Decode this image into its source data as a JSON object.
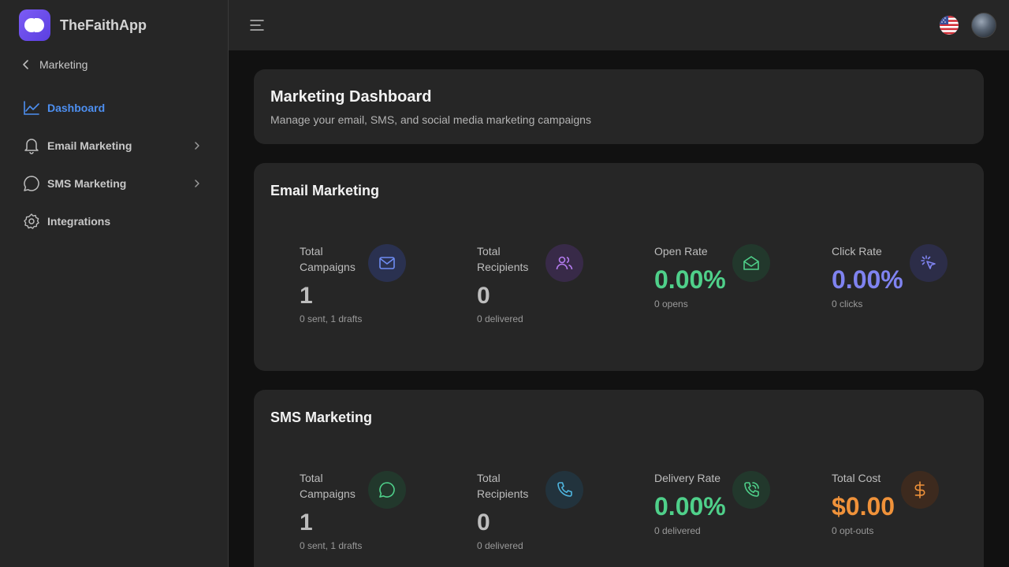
{
  "brand": {
    "name": "TheFaithApp"
  },
  "sidebar": {
    "back_label": "Marketing",
    "items": [
      {
        "label": "Dashboard",
        "active": true,
        "icon": "chart-line-icon"
      },
      {
        "label": "Email Marketing",
        "icon": "bell-icon",
        "has_children": true
      },
      {
        "label": "SMS Marketing",
        "icon": "chat-bubble-icon",
        "has_children": true
      },
      {
        "label": "Integrations",
        "icon": "gear-icon"
      }
    ]
  },
  "topbar": {
    "menu_icon": "hamburger-icon",
    "flag_icon": "us-flag-icon",
    "avatar": "user-avatar"
  },
  "header": {
    "title": "Marketing Dashboard",
    "subtitle": "Manage your email, SMS, and social media marketing campaigns"
  },
  "email": {
    "title": "Email Marketing",
    "stats": [
      {
        "label": "Total Campaigns",
        "value": "1",
        "sub": "0 sent, 1 drafts",
        "icon": "mail-icon",
        "color": "#6e8cf2"
      },
      {
        "label": "Total Recipients",
        "value": "0",
        "sub": "0 delivered",
        "icon": "users-icon",
        "color": "#b57cf0"
      },
      {
        "label": "Open Rate",
        "value": "0.00%",
        "sub": "0 opens",
        "icon": "mail-open-icon",
        "color": "#4fd08a"
      },
      {
        "label": "Click Rate",
        "value": "0.00%",
        "sub": "0 clicks",
        "icon": "cursor-click-icon",
        "color": "#7f83f0"
      }
    ]
  },
  "sms": {
    "title": "SMS Marketing",
    "stats": [
      {
        "label": "Total Campaigns",
        "value": "1",
        "sub": "0 sent, 1 drafts",
        "icon": "chat-icon",
        "color": "#4fd08a"
      },
      {
        "label": "Total Recipients",
        "value": "0",
        "sub": "0 delivered",
        "icon": "phone-icon",
        "color": "#4fb6e0"
      },
      {
        "label": "Delivery Rate",
        "value": "0.00%",
        "sub": "0 delivered",
        "icon": "phone-call-icon",
        "color": "#4fd08a"
      },
      {
        "label": "Total Cost",
        "value": "$0.00",
        "sub": "0 opt-outs",
        "icon": "dollar-icon",
        "color": "#f0923a"
      }
    ]
  }
}
